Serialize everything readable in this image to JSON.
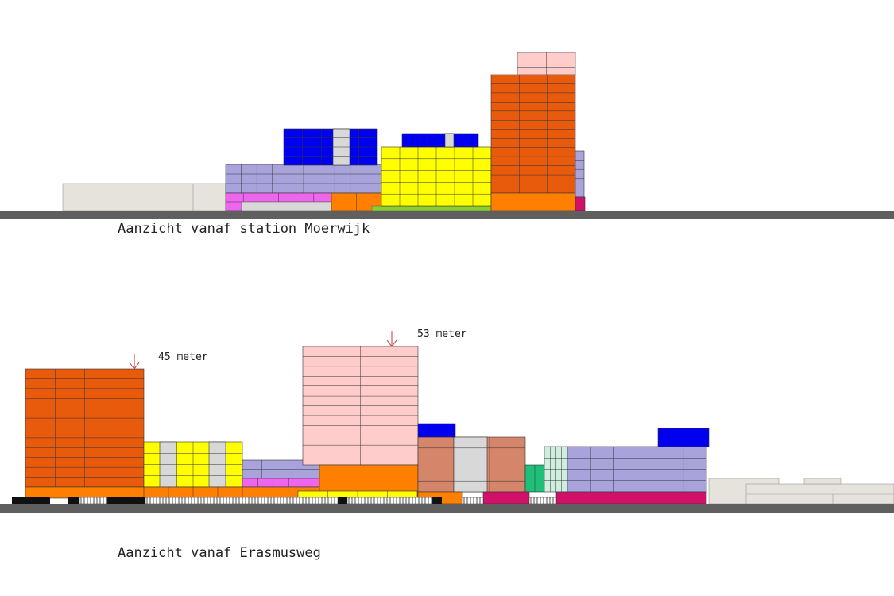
{
  "elevations": [
    {
      "id": "moerwijk",
      "caption": "Aanzicht vanaf station Moerwijk"
    },
    {
      "id": "erasmusweg",
      "caption": "Aanzicht vanaf Erasmusweg",
      "height_markers": [
        {
          "label": "45 meter"
        },
        {
          "label": "53 meter"
        }
      ]
    }
  ],
  "colors": {
    "ground": "#5f5f5f",
    "orange_dark": "#e85a0c",
    "orange": "#ff7f00",
    "pink_light": "#ffcccc",
    "lavender": "#a9a3dc",
    "blue": "#0000ee",
    "yellow": "#ffff00",
    "magenta": "#ee66ee",
    "crimson": "#d1106a",
    "gray_light": "#d8d8d8",
    "beige": "#e6e2dc",
    "brown": "#d4856a",
    "green": "#1fbf7a",
    "mint": "#cfeee0",
    "lime": "#8ccf2a",
    "arrow": "#c0392b"
  }
}
